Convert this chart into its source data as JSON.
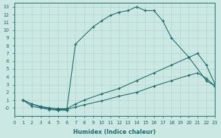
{
  "xlabel": "Humidex (Indice chaleur)",
  "xlim": [
    0,
    23
  ],
  "ylim": [
    -1,
    13.5
  ],
  "xticks": [
    0,
    1,
    2,
    3,
    4,
    5,
    6,
    7,
    8,
    9,
    10,
    11,
    12,
    13,
    14,
    15,
    16,
    17,
    18,
    19,
    20,
    21,
    22,
    23
  ],
  "yticks": [
    0,
    1,
    2,
    3,
    4,
    5,
    6,
    7,
    8,
    9,
    10,
    11,
    12,
    13
  ],
  "ytick_labels": [
    "-0",
    "1",
    "2",
    "3",
    "4",
    "5",
    "6",
    "7",
    "8",
    "9",
    "10",
    "11",
    "12",
    "13"
  ],
  "bg_color": "#cce8e2",
  "line_color": "#1a6b6b",
  "grid_color": "#b0d4cc",
  "line1_x": [
    1,
    2,
    3,
    4,
    5,
    6,
    7,
    9,
    10,
    11,
    12,
    13,
    14,
    15,
    16,
    17,
    18,
    20,
    22,
    23
  ],
  "line1_y": [
    1,
    0.2,
    0.0,
    -0.2,
    -0.3,
    -0.3,
    8.2,
    10.4,
    11.2,
    11.9,
    12.3,
    12.5,
    13.0,
    12.5,
    12.5,
    11.2,
    9.0,
    6.5,
    3.5,
    2.8
  ],
  "line2_x": [
    1,
    2,
    3,
    4,
    5,
    6,
    7,
    8,
    10,
    12,
    14,
    16,
    18,
    20,
    21,
    22,
    23
  ],
  "line2_y": [
    1,
    0.5,
    0.2,
    0.0,
    -0.1,
    -0.1,
    0.5,
    1.0,
    1.8,
    2.5,
    3.5,
    4.5,
    5.5,
    6.5,
    7.0,
    5.5,
    3.0
  ],
  "line3_x": [
    1,
    2,
    3,
    4,
    5,
    6,
    7,
    8,
    10,
    12,
    14,
    16,
    18,
    20,
    21,
    22,
    23
  ],
  "line3_y": [
    1,
    0.5,
    0.1,
    -0.1,
    -0.2,
    -0.2,
    0.1,
    0.4,
    0.9,
    1.5,
    2.0,
    2.8,
    3.5,
    4.2,
    4.5,
    3.8,
    2.8
  ]
}
